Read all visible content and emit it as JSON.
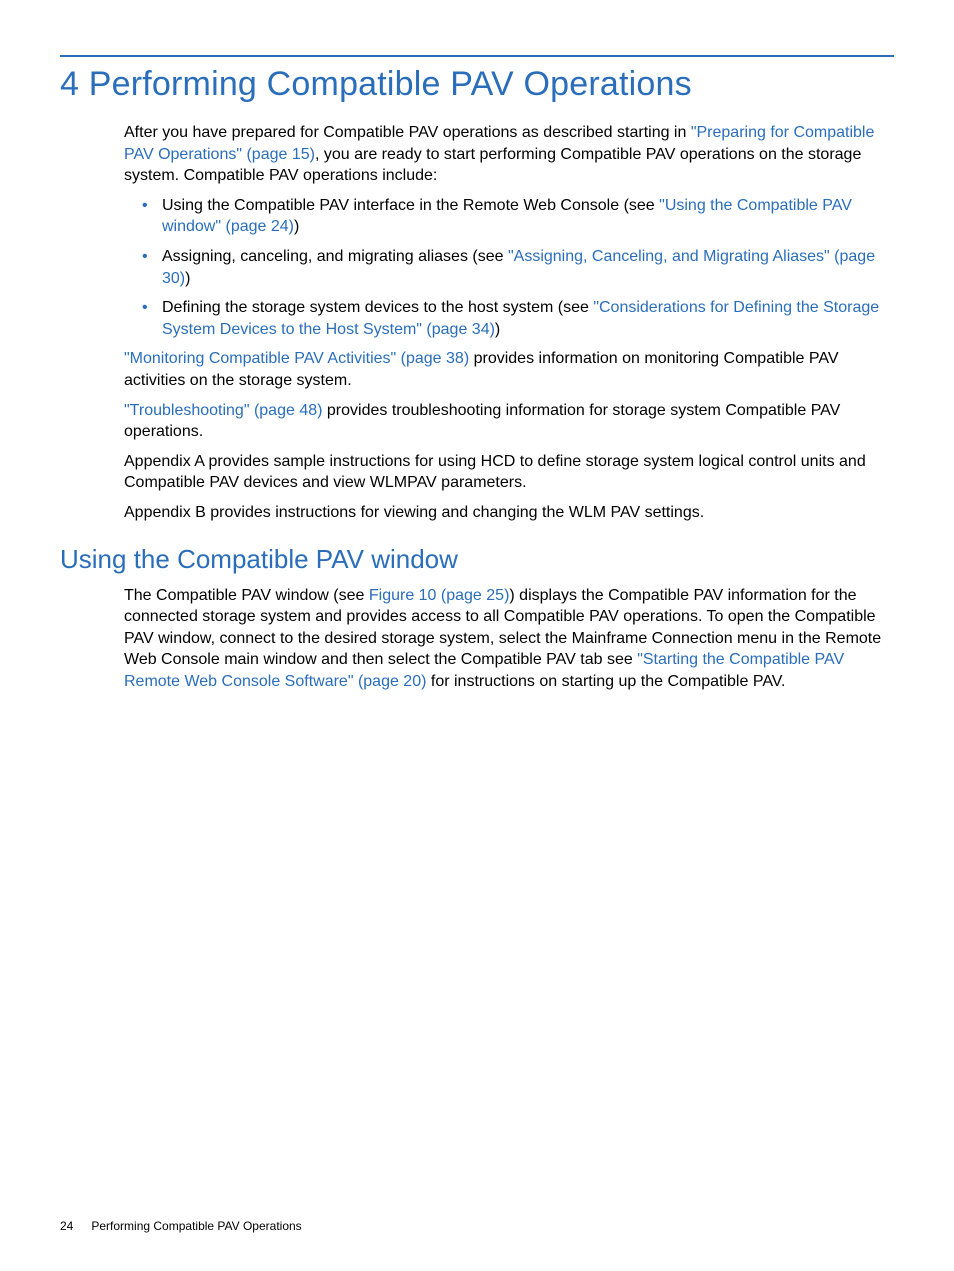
{
  "colors": {
    "accent": "#2a6ebb",
    "text": "#000000",
    "background": "#ffffff"
  },
  "typography": {
    "h1_fontsize": 34,
    "h2_fontsize": 26,
    "body_fontsize": 16,
    "footer_fontsize": 12,
    "heading_weight": 300
  },
  "chapter": {
    "title": "4 Performing Compatible PAV Operations"
  },
  "intro": {
    "pre": "After you have prepared for Compatible PAV operations as described starting in ",
    "link1": "\"Preparing for Compatible PAV Operations\" (page 15)",
    "post": ", you are ready to start performing Compatible PAV operations on the storage system. Compatible PAV operations include:"
  },
  "bullets": {
    "b1": {
      "pre": "Using the Compatible PAV interface in the Remote Web Console (see ",
      "link": "\"Using the Compatible PAV window\" (page 24)",
      "post": ")"
    },
    "b2": {
      "pre": "Assigning, canceling, and migrating aliases (see ",
      "link": "\"Assigning, Canceling, and Migrating Aliases\" (page 30)",
      "post": ")"
    },
    "b3": {
      "pre": "Defining the storage system devices to the host system (see ",
      "link": "\"Considerations for Defining the Storage System Devices to the Host System\" (page 34)",
      "post": ")"
    }
  },
  "para_monitoring": {
    "link": "\"Monitoring Compatible PAV Activities\" (page 38)",
    "post": " provides information on monitoring Compatible PAV activities on the storage system."
  },
  "para_troubleshooting": {
    "link": "\"Troubleshooting\" (page 48)",
    "post": " provides troubleshooting information for storage system Compatible PAV operations."
  },
  "para_appendix_a": "Appendix A provides sample instructions for using HCD to define storage system logical control units and Compatible PAV devices and view WLMPAV parameters.",
  "para_appendix_b": "Appendix B provides instructions for viewing and changing the WLM PAV settings.",
  "section2": {
    "title": "Using the Compatible PAV window",
    "para": {
      "pre": "The Compatible PAV window (see ",
      "link1": "Figure 10 (page 25)",
      "mid": ") displays the Compatible PAV information for the connected storage system and provides access to all Compatible PAV operations. To open the Compatible PAV window, connect to the desired storage system, select the Mainframe Connection menu in the Remote Web Console main window and then select the Compatible PAV tab see ",
      "link2": "\"Starting the Compatible PAV Remote Web Console Software\" (page 20)",
      "post": " for instructions on starting up the Compatible PAV."
    }
  },
  "footer": {
    "page_number": "24",
    "label": "Performing Compatible PAV Operations"
  }
}
